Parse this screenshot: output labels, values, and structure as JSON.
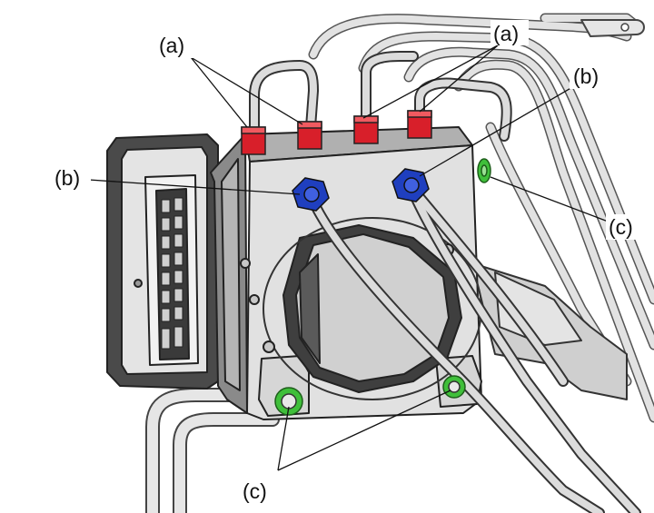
{
  "callouts": {
    "a_left": "(a)",
    "a_right": "(a)",
    "b_left": "(b)",
    "b_right": "(b)",
    "c_right": "(c)",
    "c_bottom": "(c)"
  },
  "colors": {
    "fitting_a": "#d81f2a",
    "fitting_b": "#1f3fbf",
    "fitting_c": "#3fbf3a",
    "unit_body": "#d8d8d8",
    "pipe": "#c9c9c9"
  }
}
